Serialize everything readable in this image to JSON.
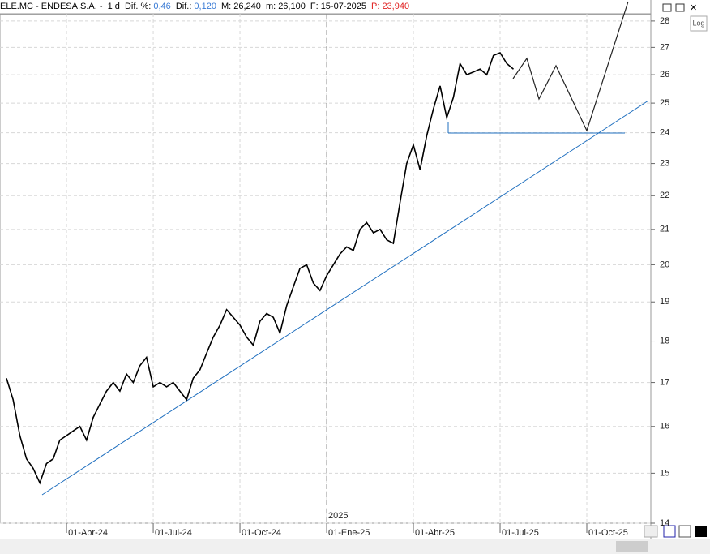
{
  "header": {
    "symbol": "ELE.MC - ENDESA,S.A. -",
    "period": "1 d",
    "dif_pct_label": "Dif. %:",
    "dif_pct": "0,46",
    "dif_label": "Dif.:",
    "dif": "0,120",
    "max_label": "M:",
    "max": "26,240",
    "min_label": "m:",
    "min": "26,100",
    "date_label": "F:",
    "date": "15-07-2025",
    "price_label": "P:",
    "price": "23,940",
    "log_button": "Log"
  },
  "chart_data": {
    "type": "line",
    "log_scale": true,
    "grid": true,
    "color": "#000000",
    "year_marker": "2025",
    "categories": [
      null,
      null,
      null,
      null,
      null,
      null,
      null,
      null,
      null,
      "01-Abr-24",
      null,
      null,
      null,
      null,
      null,
      null,
      null,
      null,
      null,
      null,
      null,
      null,
      "01-Jul-24",
      null,
      null,
      null,
      null,
      null,
      null,
      null,
      null,
      null,
      null,
      null,
      null,
      "01-Oct-24",
      null,
      null,
      null,
      null,
      null,
      null,
      null,
      null,
      null,
      null,
      null,
      null,
      "01-Ene-25",
      null,
      null,
      null,
      null,
      null,
      null,
      null,
      null,
      null,
      null,
      null,
      null,
      "01-Abr-25",
      null,
      null,
      null,
      null,
      null,
      null,
      null,
      null,
      null,
      null,
      null,
      null,
      "01-Jul-25",
      null,
      null,
      null,
      null,
      null,
      null,
      null,
      null,
      null,
      null,
      null,
      null,
      "01-Oct-25",
      null,
      null,
      null,
      null,
      null,
      null,
      null,
      null
    ],
    "values": [
      17.1,
      16.6,
      15.8,
      15.3,
      15.1,
      14.8,
      15.2,
      15.3,
      15.7,
      15.8,
      15.9,
      16.0,
      15.7,
      16.2,
      16.5,
      16.8,
      17.0,
      16.8,
      17.2,
      17.0,
      17.4,
      17.6,
      16.9,
      17.0,
      16.9,
      17.0,
      16.8,
      16.6,
      17.1,
      17.3,
      17.7,
      18.1,
      18.4,
      18.8,
      18.6,
      18.4,
      18.1,
      17.9,
      18.5,
      18.7,
      18.6,
      18.2,
      18.9,
      19.4,
      19.9,
      20.0,
      19.5,
      19.3,
      19.7,
      20.0,
      20.3,
      20.5,
      20.4,
      21.0,
      21.2,
      20.9,
      21.0,
      20.7,
      20.6,
      21.8,
      23.0,
      23.6,
      22.8,
      23.9,
      24.8,
      25.6,
      24.5,
      25.2,
      26.4,
      26.0,
      26.1,
      26.2,
      26.0,
      26.7,
      26.8,
      26.4,
      26.2,
      null,
      null,
      null,
      null,
      null,
      null,
      null,
      null,
      null,
      null,
      null,
      null,
      null,
      null,
      null,
      null,
      null,
      null,
      null
    ],
    "ylim": [
      14,
      28.28
    ],
    "yticks": [
      14,
      15,
      16,
      17,
      18,
      19,
      20,
      21,
      22,
      23,
      24,
      25,
      26,
      27,
      28
    ]
  }
}
